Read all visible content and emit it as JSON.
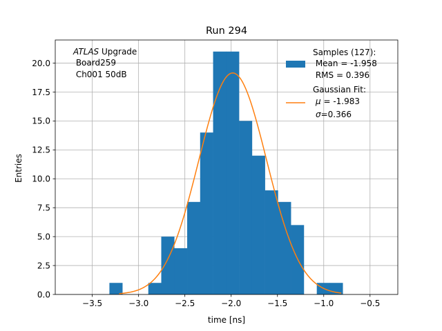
{
  "chart_data": {
    "type": "bar",
    "title": "Run 294",
    "xlabel": "time [ns]",
    "ylabel": "Entries",
    "xlim": [
      -3.9,
      -0.2
    ],
    "ylim": [
      0,
      22
    ],
    "grid": true,
    "xticks": [
      -3.5,
      -3.0,
      -2.5,
      -2.0,
      -1.5,
      -1.0,
      -0.5
    ],
    "xtick_labels": [
      "−3.5",
      "−3.0",
      "−2.5",
      "−2.0",
      "−1.5",
      "−1.0",
      "−0.5"
    ],
    "yticks": [
      0,
      2.5,
      5,
      7.5,
      10,
      12.5,
      15,
      17.5,
      20
    ],
    "ytick_labels": [
      "0.0",
      "2.5",
      "5.0",
      "7.5",
      "10.0",
      "12.5",
      "15.0",
      "17.5",
      "20.0"
    ],
    "annotation": {
      "italic": "ATLAS",
      "rest": " Upgrade",
      "line2": " Board259",
      "line3": " Ch001 50dB"
    },
    "histogram": {
      "color": "#1f77b4",
      "bins": [
        {
          "left": -3.315,
          "right": -3.175,
          "count": 1
        },
        {
          "left": -2.895,
          "right": -2.755,
          "count": 1
        },
        {
          "left": -2.755,
          "right": -2.615,
          "count": 5
        },
        {
          "left": -2.615,
          "right": -2.475,
          "count": 4
        },
        {
          "left": -2.475,
          "right": -2.335,
          "count": 8
        },
        {
          "left": -2.335,
          "right": -2.195,
          "count": 14
        },
        {
          "left": -2.195,
          "right": -2.055,
          "count": 21
        },
        {
          "left": -2.055,
          "right": -1.915,
          "count": 21
        },
        {
          "left": -1.915,
          "right": -1.775,
          "count": 15
        },
        {
          "left": -1.775,
          "right": -1.635,
          "count": 12
        },
        {
          "left": -1.635,
          "right": -1.495,
          "count": 9
        },
        {
          "left": -1.495,
          "right": -1.355,
          "count": 8
        },
        {
          "left": -1.355,
          "right": -1.215,
          "count": 6
        },
        {
          "left": -1.075,
          "right": -0.935,
          "count": 1
        },
        {
          "left": -0.935,
          "right": -0.795,
          "count": 1
        }
      ]
    },
    "fit": {
      "color": "#ff7f0e",
      "amplitude": 19.15,
      "mu": -1.983,
      "sigma": 0.366,
      "x_range": [
        -3.21,
        -0.81
      ]
    },
    "legend": {
      "placement": "top-right",
      "samples_line1": "Samples (127):",
      "samples_line2": " Mean = -1.958",
      "samples_line3": " RMS = 0.396",
      "fit_line1": "Gaussian Fit:",
      "fit_mu_symbol": "μ",
      "fit_mu_value": " = -1.983",
      "fit_sigma_symbol": "σ",
      "fit_sigma_value": "=0.366"
    }
  }
}
